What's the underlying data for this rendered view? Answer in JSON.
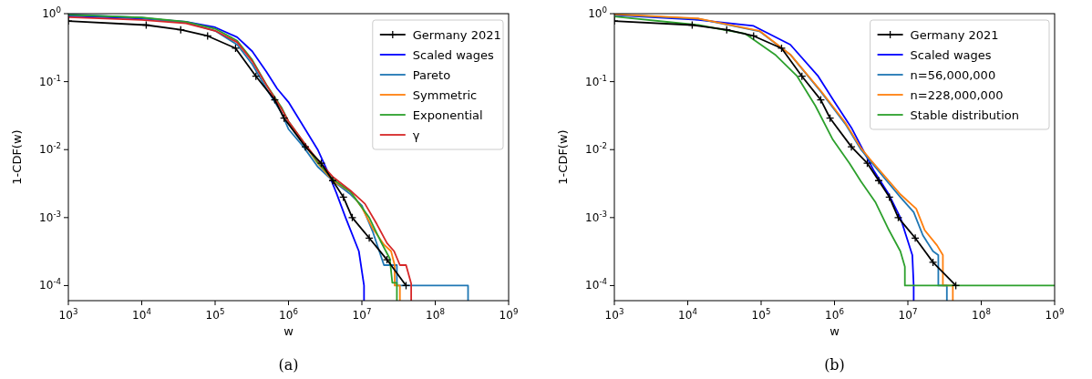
{
  "chart_data": [
    {
      "type": "line",
      "xlabel": "w",
      "ylabel": "1-CDF(w)",
      "log": "xy",
      "grid": false,
      "legend": "top right",
      "annotations": [
        "(a)"
      ],
      "xlim": [
        1000,
        1000000000
      ],
      "ylim": [
        6e-05,
        1
      ],
      "xticks": [
        {
          "value": 1000,
          "label": "10$^{3}$"
        },
        {
          "value": 10000,
          "label": "10$^{4}$"
        },
        {
          "value": 100000,
          "label": "10$^{5}$"
        },
        {
          "value": 1000000,
          "label": "10$^{6}$"
        },
        {
          "value": 10000000,
          "label": "10$^{7}$"
        },
        {
          "value": 100000000,
          "label": "10$^{8}$"
        },
        {
          "value": 1000000000,
          "label": "10$^{9}$"
        }
      ],
      "yticks": [
        {
          "value": 0.0001,
          "label": "10$^{-4}$"
        },
        {
          "value": 0.001,
          "label": "10$^{-3}$"
        },
        {
          "value": 0.01,
          "label": "10$^{-2}$"
        },
        {
          "value": 0.1,
          "label": "10$^{-1}$"
        },
        {
          "value": 1,
          "label": "10$^{0}$"
        }
      ],
      "series": [
        {
          "name": "Germany 2021",
          "color": "#000000",
          "marker": "cross",
          "x": [
            1000,
            11500,
            34000,
            79000,
            190000,
            360000,
            650000,
            870000,
            1700000.0,
            2800000.0,
            4000000.0,
            5600000.0,
            7400000.0,
            12600000.0,
            22000000.0,
            40000000.0
          ],
          "values": [
            0.78,
            0.68,
            0.58,
            0.47,
            0.31,
            0.12,
            0.054,
            0.029,
            0.011,
            0.0063,
            0.0035,
            0.002,
            0.001,
            0.0005,
            0.00024,
            0.0001
          ]
        },
        {
          "name": "Scaled wages",
          "color": "#0000ff",
          "x": [
            1000,
            10000,
            40000,
            100000,
            200000,
            320000,
            500000,
            700000,
            1000000.0,
            1600000.0,
            2500000.0,
            3500000.0,
            4500000.0,
            6000000.0,
            9100000.0,
            10700000.0,
            10700000.0
          ],
          "values": [
            0.93,
            0.85,
            0.76,
            0.63,
            0.45,
            0.28,
            0.14,
            0.079,
            0.05,
            0.022,
            0.01,
            0.0045,
            0.0023,
            0.001,
            0.00032,
            0.0001,
            6e-05
          ]
        },
        {
          "name": "Pareto",
          "color": "#1f77b4",
          "x": [
            1000,
            10000,
            40000,
            100000,
            200000,
            320000,
            500000,
            800000,
            1000000.0,
            1600000.0,
            2500000.0,
            4000000.0,
            7000000.0,
            10000000.0,
            14000000.0,
            20000000.0,
            30000000.0,
            30000000.0,
            280000000.0,
            280000000.0
          ],
          "values": [
            0.98,
            0.87,
            0.74,
            0.56,
            0.35,
            0.18,
            0.079,
            0.035,
            0.02,
            0.011,
            0.0056,
            0.0035,
            0.0022,
            0.0015,
            0.00063,
            0.0002,
            0.0002,
            0.0001,
            0.0001,
            6e-05
          ]
        },
        {
          "name": "Symmetric",
          "color": "#ff7f0e",
          "x": [
            1000000.0,
            1600000.0,
            2500000.0,
            4000000.0,
            7000000.0,
            10000000.0,
            14000000.0,
            20000000.0,
            25000000.0,
            28000000.0,
            28000000.0,
            33000000.0,
            33000000.0
          ],
          "values": [
            0.025,
            0.0126,
            0.0063,
            0.0035,
            0.0024,
            0.0014,
            0.0007,
            0.0004,
            0.00032,
            0.0002,
            0.0001,
            0.0001,
            6e-05
          ]
        },
        {
          "name": "Exponential",
          "color": "#2ca02c",
          "x": [
            1000,
            10000,
            40000,
            100000,
            200000,
            320000,
            500000,
            800000,
            1000000.0,
            1600000.0,
            2500000.0,
            4000000.0,
            7000000.0,
            12600000.0,
            18000000.0,
            24000000.0,
            26000000.0,
            30000000.0,
            30000000.0
          ],
          "values": [
            0.96,
            0.88,
            0.76,
            0.6,
            0.4,
            0.21,
            0.09,
            0.042,
            0.026,
            0.013,
            0.0065,
            0.0037,
            0.0024,
            0.001,
            0.00045,
            0.00025,
            0.00011,
            0.00011,
            6e-05
          ]
        },
        {
          "name": "γ",
          "color": "#d62728",
          "x": [
            1000,
            10000,
            40000,
            100000,
            200000,
            320000,
            500000,
            800000,
            1000000.0,
            1600000.0,
            2500000.0,
            4000000.0,
            7000000.0,
            11000000.0,
            16000000.0,
            22000000.0,
            27500000.0,
            33000000.0,
            40000000.0,
            47000000.0,
            47000000.0
          ],
          "values": [
            0.89,
            0.81,
            0.72,
            0.56,
            0.38,
            0.2,
            0.089,
            0.04,
            0.026,
            0.013,
            0.007,
            0.004,
            0.0025,
            0.0016,
            0.0008,
            0.00042,
            0.00032,
            0.0002,
            0.0002,
            0.000107,
            6e-05
          ]
        }
      ]
    },
    {
      "type": "line",
      "xlabel": "w",
      "ylabel": "1-CDF(w)",
      "log": "xy",
      "grid": false,
      "legend": "top right",
      "annotations": [
        "(b)"
      ],
      "xlim": [
        1000,
        1000000000
      ],
      "ylim": [
        6e-05,
        1
      ],
      "xticks": [
        {
          "value": 1000,
          "label": "10$^{3}$"
        },
        {
          "value": 10000,
          "label": "10$^{4}$"
        },
        {
          "value": 100000,
          "label": "10$^{5}$"
        },
        {
          "value": 1000000,
          "label": "10$^{6}$"
        },
        {
          "value": 10000000,
          "label": "10$^{7}$"
        },
        {
          "value": 100000000,
          "label": "10$^{8}$"
        },
        {
          "value": 1000000000,
          "label": "10$^{9}$"
        }
      ],
      "yticks": [
        {
          "value": 0.0001,
          "label": "10$^{-4}$"
        },
        {
          "value": 0.001,
          "label": "10$^{-3}$"
        },
        {
          "value": 0.01,
          "label": "10$^{-2}$"
        },
        {
          "value": 0.1,
          "label": "10$^{-1}$"
        },
        {
          "value": 1,
          "label": "10$^{0}$"
        }
      ],
      "series": [
        {
          "name": "Germany 2021",
          "color": "#000000",
          "marker": "cross",
          "x": [
            1000,
            11500,
            34000,
            79000,
            190000,
            360000,
            650000,
            870000,
            1700000.0,
            2800000.0,
            4000000.0,
            5600000.0,
            7400000.0,
            12600000.0,
            22000000.0,
            45000000.0
          ],
          "values": [
            0.78,
            0.68,
            0.58,
            0.47,
            0.31,
            0.12,
            0.054,
            0.029,
            0.011,
            0.0063,
            0.0035,
            0.002,
            0.001,
            0.0005,
            0.00022,
            0.0001
          ]
        },
        {
          "name": "Scaled wages",
          "color": "#0000ff",
          "x": [
            1000,
            14000,
            79000,
            250000,
            600000,
            980000,
            1700000.0,
            3400000.0,
            5500000.0,
            7900000.0,
            11500000.0,
            12000000.0,
            12000000.0
          ],
          "values": [
            0.95,
            0.81,
            0.66,
            0.35,
            0.12,
            0.052,
            0.021,
            0.005,
            0.0022,
            0.001,
            0.00028,
            0.0001,
            6e-05
          ]
        },
        {
          "name": "n=56,000,000",
          "color": "#1f77b4",
          "x": [
            1000,
            14000,
            95000,
            250000,
            660000,
            1400000.0,
            2300000.0,
            3000000.0,
            7900000.0,
            12000000.0,
            16000000.0,
            22000000.0,
            26000000.0,
            26000000.0,
            34000000.0,
            34000000.0
          ],
          "values": [
            0.97,
            0.84,
            0.55,
            0.25,
            0.07,
            0.024,
            0.01,
            0.007,
            0.002,
            0.0012,
            0.00055,
            0.00032,
            0.00028,
            0.0001,
            0.0001,
            6e-05
          ]
        },
        {
          "name": "n=228,000,000",
          "color": "#ff7f0e",
          "x": [
            1000,
            14000,
            95000,
            250000,
            660000,
            1400000.0,
            2300000.0,
            3000000.0,
            7900000.0,
            13000000.0,
            17000000.0,
            25000000.0,
            30000000.0,
            30000000.0,
            41000000.0,
            41000000.0
          ],
          "values": [
            0.98,
            0.85,
            0.56,
            0.25,
            0.072,
            0.025,
            0.0105,
            0.0074,
            0.0022,
            0.00135,
            0.00065,
            0.00039,
            0.00028,
            0.0001,
            0.0001,
            6e-05
          ]
        },
        {
          "name": "Stable distribution",
          "color": "#2ca02c",
          "x": [
            1000,
            14000,
            60000,
            155000,
            310000,
            550000,
            950000,
            1600000.0,
            2300000.0,
            3600000.0,
            5500000.0,
            7900000.0,
            9100000.0,
            9100000.0,
            1000000000.0
          ],
          "values": [
            0.91,
            0.68,
            0.51,
            0.25,
            0.12,
            0.044,
            0.014,
            0.0063,
            0.0034,
            0.0017,
            0.00066,
            0.00032,
            0.00019,
            0.0001,
            0.0001
          ]
        }
      ]
    }
  ]
}
